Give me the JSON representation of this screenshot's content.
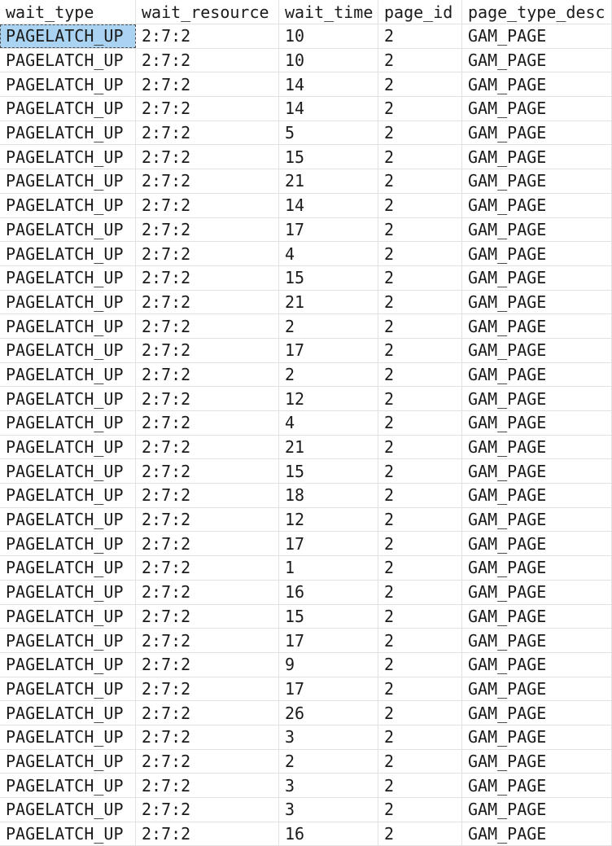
{
  "grid": {
    "columns": [
      {
        "key": "wait_type",
        "label": "wait_type"
      },
      {
        "key": "wait_resource",
        "label": "wait_resource"
      },
      {
        "key": "wait_time",
        "label": "wait_time"
      },
      {
        "key": "page_id",
        "label": "page_id"
      },
      {
        "key": "page_type_desc",
        "label": "page_type_desc"
      }
    ],
    "selected_cell": {
      "row": 0,
      "col": 0
    },
    "colors": {
      "selection_bg": "#a9d3f1",
      "selection_border": "#4d4d4d",
      "grid_line": "#e2e2e2",
      "text": "#1b1b1b",
      "background": "#ffffff"
    },
    "rows": [
      {
        "wait_type": "PAGELATCH_UP",
        "wait_resource": "2:7:2",
        "wait_time": "10",
        "page_id": "2",
        "page_type_desc": "GAM_PAGE"
      },
      {
        "wait_type": "PAGELATCH_UP",
        "wait_resource": "2:7:2",
        "wait_time": "10",
        "page_id": "2",
        "page_type_desc": "GAM_PAGE"
      },
      {
        "wait_type": "PAGELATCH_UP",
        "wait_resource": "2:7:2",
        "wait_time": "14",
        "page_id": "2",
        "page_type_desc": "GAM_PAGE"
      },
      {
        "wait_type": "PAGELATCH_UP",
        "wait_resource": "2:7:2",
        "wait_time": "14",
        "page_id": "2",
        "page_type_desc": "GAM_PAGE"
      },
      {
        "wait_type": "PAGELATCH_UP",
        "wait_resource": "2:7:2",
        "wait_time": "5",
        "page_id": "2",
        "page_type_desc": "GAM_PAGE"
      },
      {
        "wait_type": "PAGELATCH_UP",
        "wait_resource": "2:7:2",
        "wait_time": "15",
        "page_id": "2",
        "page_type_desc": "GAM_PAGE"
      },
      {
        "wait_type": "PAGELATCH_UP",
        "wait_resource": "2:7:2",
        "wait_time": "21",
        "page_id": "2",
        "page_type_desc": "GAM_PAGE"
      },
      {
        "wait_type": "PAGELATCH_UP",
        "wait_resource": "2:7:2",
        "wait_time": "14",
        "page_id": "2",
        "page_type_desc": "GAM_PAGE"
      },
      {
        "wait_type": "PAGELATCH_UP",
        "wait_resource": "2:7:2",
        "wait_time": "17",
        "page_id": "2",
        "page_type_desc": "GAM_PAGE"
      },
      {
        "wait_type": "PAGELATCH_UP",
        "wait_resource": "2:7:2",
        "wait_time": "4",
        "page_id": "2",
        "page_type_desc": "GAM_PAGE"
      },
      {
        "wait_type": "PAGELATCH_UP",
        "wait_resource": "2:7:2",
        "wait_time": "15",
        "page_id": "2",
        "page_type_desc": "GAM_PAGE"
      },
      {
        "wait_type": "PAGELATCH_UP",
        "wait_resource": "2:7:2",
        "wait_time": "21",
        "page_id": "2",
        "page_type_desc": "GAM_PAGE"
      },
      {
        "wait_type": "PAGELATCH_UP",
        "wait_resource": "2:7:2",
        "wait_time": "2",
        "page_id": "2",
        "page_type_desc": "GAM_PAGE"
      },
      {
        "wait_type": "PAGELATCH_UP",
        "wait_resource": "2:7:2",
        "wait_time": "17",
        "page_id": "2",
        "page_type_desc": "GAM_PAGE"
      },
      {
        "wait_type": "PAGELATCH_UP",
        "wait_resource": "2:7:2",
        "wait_time": "2",
        "page_id": "2",
        "page_type_desc": "GAM_PAGE"
      },
      {
        "wait_type": "PAGELATCH_UP",
        "wait_resource": "2:7:2",
        "wait_time": "12",
        "page_id": "2",
        "page_type_desc": "GAM_PAGE"
      },
      {
        "wait_type": "PAGELATCH_UP",
        "wait_resource": "2:7:2",
        "wait_time": "4",
        "page_id": "2",
        "page_type_desc": "GAM_PAGE"
      },
      {
        "wait_type": "PAGELATCH_UP",
        "wait_resource": "2:7:2",
        "wait_time": "21",
        "page_id": "2",
        "page_type_desc": "GAM_PAGE"
      },
      {
        "wait_type": "PAGELATCH_UP",
        "wait_resource": "2:7:2",
        "wait_time": "15",
        "page_id": "2",
        "page_type_desc": "GAM_PAGE"
      },
      {
        "wait_type": "PAGELATCH_UP",
        "wait_resource": "2:7:2",
        "wait_time": "18",
        "page_id": "2",
        "page_type_desc": "GAM_PAGE"
      },
      {
        "wait_type": "PAGELATCH_UP",
        "wait_resource": "2:7:2",
        "wait_time": "12",
        "page_id": "2",
        "page_type_desc": "GAM_PAGE"
      },
      {
        "wait_type": "PAGELATCH_UP",
        "wait_resource": "2:7:2",
        "wait_time": "17",
        "page_id": "2",
        "page_type_desc": "GAM_PAGE"
      },
      {
        "wait_type": "PAGELATCH_UP",
        "wait_resource": "2:7:2",
        "wait_time": "1",
        "page_id": "2",
        "page_type_desc": "GAM_PAGE"
      },
      {
        "wait_type": "PAGELATCH_UP",
        "wait_resource": "2:7:2",
        "wait_time": "16",
        "page_id": "2",
        "page_type_desc": "GAM_PAGE"
      },
      {
        "wait_type": "PAGELATCH_UP",
        "wait_resource": "2:7:2",
        "wait_time": "15",
        "page_id": "2",
        "page_type_desc": "GAM_PAGE"
      },
      {
        "wait_type": "PAGELATCH_UP",
        "wait_resource": "2:7:2",
        "wait_time": "17",
        "page_id": "2",
        "page_type_desc": "GAM_PAGE"
      },
      {
        "wait_type": "PAGELATCH_UP",
        "wait_resource": "2:7:2",
        "wait_time": "9",
        "page_id": "2",
        "page_type_desc": "GAM_PAGE"
      },
      {
        "wait_type": "PAGELATCH_UP",
        "wait_resource": "2:7:2",
        "wait_time": "17",
        "page_id": "2",
        "page_type_desc": "GAM_PAGE"
      },
      {
        "wait_type": "PAGELATCH_UP",
        "wait_resource": "2:7:2",
        "wait_time": "26",
        "page_id": "2",
        "page_type_desc": "GAM_PAGE"
      },
      {
        "wait_type": "PAGELATCH_UP",
        "wait_resource": "2:7:2",
        "wait_time": "3",
        "page_id": "2",
        "page_type_desc": "GAM_PAGE"
      },
      {
        "wait_type": "PAGELATCH_UP",
        "wait_resource": "2:7:2",
        "wait_time": "2",
        "page_id": "2",
        "page_type_desc": "GAM_PAGE"
      },
      {
        "wait_type": "PAGELATCH_UP",
        "wait_resource": "2:7:2",
        "wait_time": "3",
        "page_id": "2",
        "page_type_desc": "GAM_PAGE"
      },
      {
        "wait_type": "PAGELATCH_UP",
        "wait_resource": "2:7:2",
        "wait_time": "3",
        "page_id": "2",
        "page_type_desc": "GAM_PAGE"
      },
      {
        "wait_type": "PAGELATCH_UP",
        "wait_resource": "2:7:2",
        "wait_time": "16",
        "page_id": "2",
        "page_type_desc": "GAM_PAGE"
      }
    ]
  }
}
